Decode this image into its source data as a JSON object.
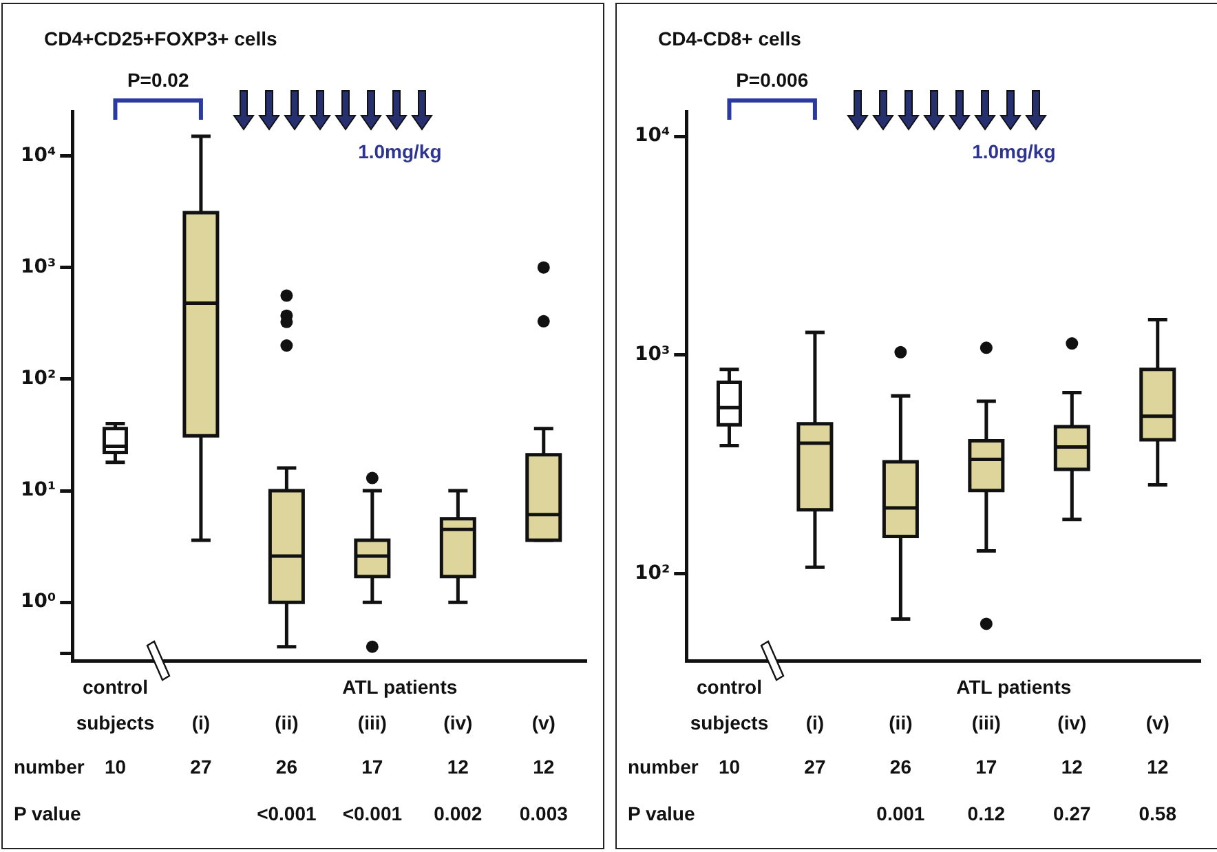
{
  "chart_data": [
    {
      "type": "box",
      "title": "CD4+CD25+FOXP3+ cells",
      "categories": [
        "control subjects",
        "(i)",
        "(ii)",
        "(iii)",
        "(iv)",
        "(v)"
      ],
      "colors": [
        "#ffffff",
        "#ddd59c",
        "#ddd59c",
        "#ddd59c",
        "#ddd59c",
        "#ddd59c"
      ],
      "boxes": [
        {
          "low": 18,
          "q1": 22,
          "median": 25,
          "q3": 36,
          "high": 40
        },
        {
          "low": 3.6,
          "q1": 31,
          "median": 480,
          "q3": 3100,
          "high": 15000
        },
        {
          "low": 0.4,
          "q1": 1,
          "median": 2.6,
          "q3": 10,
          "high": 16,
          "outliers": [
            560,
            370,
            325,
            200
          ]
        },
        {
          "low": 1,
          "q1": 1.7,
          "median": 2.6,
          "q3": 3.6,
          "high": 10,
          "outliers": [
            13,
            0.4
          ]
        },
        {
          "low": 1,
          "q1": 1.7,
          "median": 4.5,
          "q3": 5.6,
          "high": 10
        },
        {
          "low": 3.6,
          "q1": 3.6,
          "median": 6.1,
          "q3": 21,
          "high": 36,
          "outliers": [
            1000,
            330
          ]
        }
      ],
      "log": true,
      "ylim": [
        0.3,
        25000
      ],
      "yticks": [
        {
          "value": 0.35,
          "label": null
        },
        {
          "value": 1,
          "label": "10⁰"
        },
        {
          "value": 10,
          "label": "10¹"
        },
        {
          "value": 100,
          "label": "10²"
        },
        {
          "value": 1000,
          "label": "10³"
        },
        {
          "value": 10000,
          "label": "10⁴"
        }
      ],
      "annotations": [
        "P=0.02",
        "1.0mg/kg",
        "ATL patients",
        "number",
        "10",
        "27",
        "26",
        "17",
        "12",
        "12",
        "P value",
        "<0.001",
        "<0.001",
        "0.002",
        "0.003"
      ]
    },
    {
      "type": "box",
      "title": "CD4-CD8+ cells",
      "categories": [
        "control subjects",
        "(i)",
        "(ii)",
        "(iii)",
        "(iv)",
        "(v)"
      ],
      "colors": [
        "#ffffff",
        "#ddd59c",
        "#ddd59c",
        "#ddd59c",
        "#ddd59c",
        "#ddd59c"
      ],
      "boxes": [
        {
          "low": 385,
          "q1": 480,
          "median": 575,
          "q3": 750,
          "high": 860
        },
        {
          "low": 107,
          "q1": 196,
          "median": 395,
          "q3": 485,
          "high": 1270
        },
        {
          "low": 62,
          "q1": 148,
          "median": 200,
          "q3": 325,
          "high": 650,
          "outliers": [
            1030
          ]
        },
        {
          "low": 127,
          "q1": 240,
          "median": 333,
          "q3": 405,
          "high": 615,
          "outliers": [
            1080,
            59
          ]
        },
        {
          "low": 177,
          "q1": 300,
          "median": 380,
          "q3": 470,
          "high": 673,
          "outliers": [
            1130
          ]
        },
        {
          "low": 255,
          "q1": 410,
          "median": 525,
          "q3": 860,
          "high": 1450
        }
      ],
      "log": true,
      "ylim": [
        40,
        13000
      ],
      "yticks": [
        {
          "value": 100,
          "label": "10²"
        },
        {
          "value": 1000,
          "label": "10³"
        },
        {
          "value": 10000,
          "label": "10⁴"
        }
      ],
      "annotations": [
        "P=0.006",
        "1.0mg/kg",
        "ATL patients",
        "number",
        "10",
        "27",
        "26",
        "17",
        "12",
        "12",
        "P value",
        "0.001",
        "0.12",
        "0.27",
        "0.58"
      ]
    }
  ]
}
